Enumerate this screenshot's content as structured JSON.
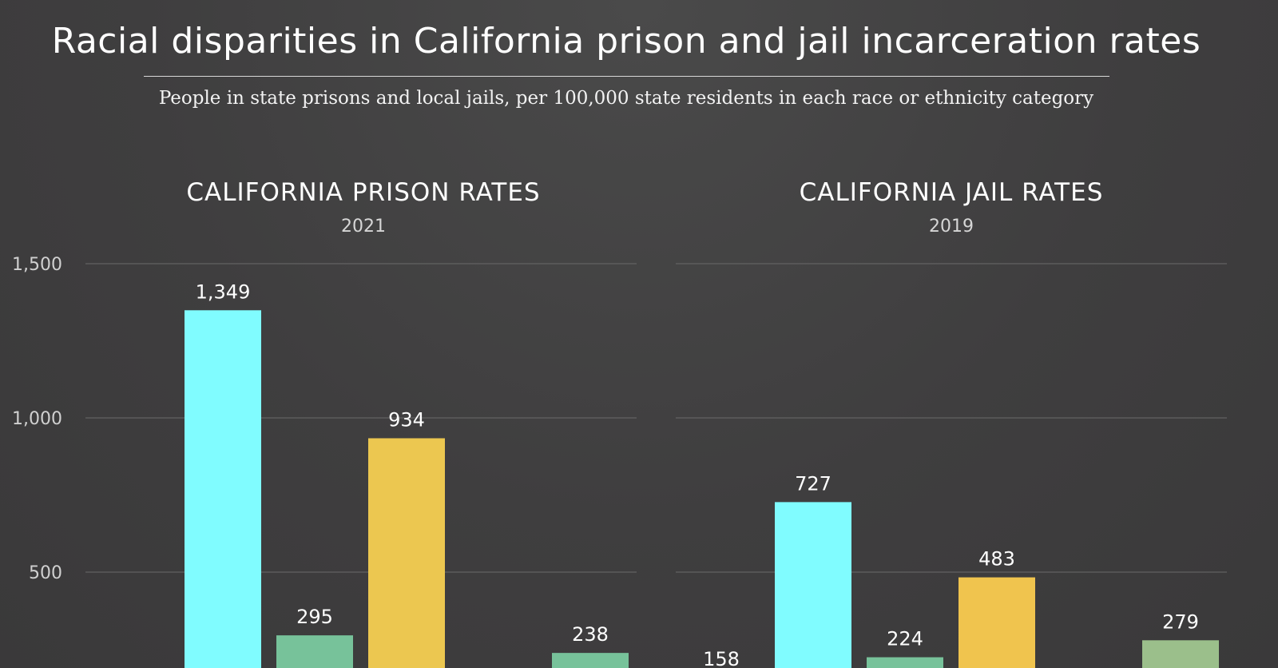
{
  "title": "Racial disparities in California prison and jail incarceration rates",
  "subtitle": "People in state prisons and local jails, per 100,000 state residents in each race or ethnicity category",
  "colors": {
    "background": "#3f3e3f",
    "cyan": "#80FCFF",
    "green": "#77C29A",
    "yellow": "#ECC750",
    "sage": "#9BBF8B",
    "grid": "#6a6a6a"
  },
  "chart_data": [
    {
      "type": "bar",
      "title": "CALIFORNIA PRISON RATES",
      "subtitle": "2021",
      "ylim": [
        0,
        1500
      ],
      "yticks": [
        500,
        1000,
        1500
      ],
      "ytick_labels": [
        "500",
        "1,000",
        "1,500"
      ],
      "grid": true,
      "values": [
        null,
        1349,
        295,
        934,
        null,
        238
      ],
      "labels": [
        "",
        "1,349",
        "295",
        "934",
        "",
        "238"
      ],
      "bar_colors": [
        "#77C29A",
        "#80FCFF",
        "#77C29A",
        "#ECC750",
        "#77C29A",
        "#77C29A"
      ]
    },
    {
      "type": "bar",
      "title": "CALIFORNIA JAIL RATES",
      "subtitle": "2019",
      "ylim": [
        0,
        1500
      ],
      "yticks": [
        500,
        1000,
        1500
      ],
      "grid": true,
      "values": [
        158,
        727,
        224,
        483,
        null,
        279
      ],
      "labels": [
        "158",
        "727",
        "224",
        "483",
        "",
        "279"
      ],
      "bar_colors": [
        "#77C29A",
        "#80FCFF",
        "#77C29A",
        "#F0C44E",
        "#9BBF8B",
        "#9BBF8B"
      ]
    }
  ]
}
